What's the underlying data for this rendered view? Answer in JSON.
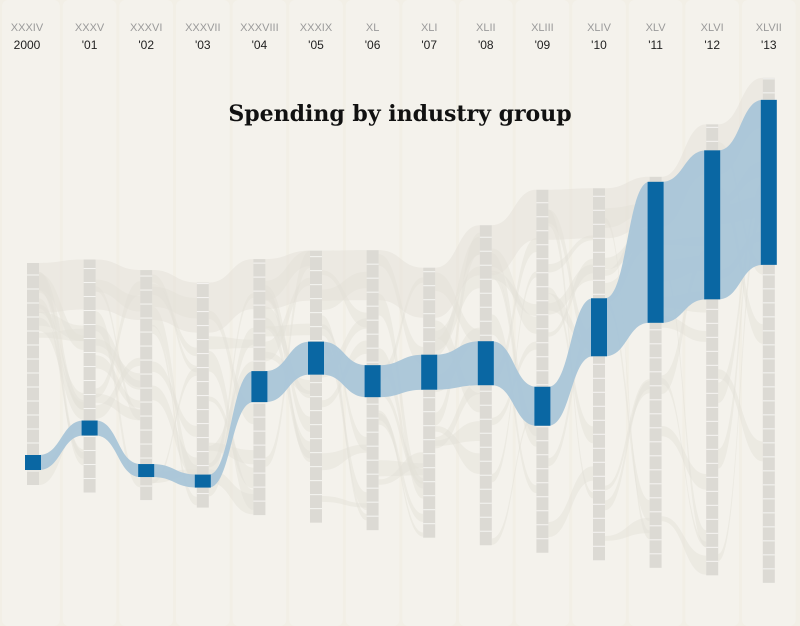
{
  "chart_data": {
    "type": "area",
    "title": "Spending by industry group",
    "columns": [
      {
        "numeral": "XXXIV",
        "year": "2000"
      },
      {
        "numeral": "XXXV",
        "year": "'01"
      },
      {
        "numeral": "XXXVI",
        "year": "'02"
      },
      {
        "numeral": "XXXVII",
        "year": "'03"
      },
      {
        "numeral": "XXXVIII",
        "year": "'04"
      },
      {
        "numeral": "XXXIX",
        "year": "'05"
      },
      {
        "numeral": "XL",
        "year": "'06"
      },
      {
        "numeral": "XLI",
        "year": "'07"
      },
      {
        "numeral": "XLII",
        "year": "'08"
      },
      {
        "numeral": "XLIII",
        "year": "'09"
      },
      {
        "numeral": "XLIV",
        "year": "'10"
      },
      {
        "numeral": "XLV",
        "year": "'11"
      },
      {
        "numeral": "XLVI",
        "year": "'12"
      },
      {
        "numeral": "XLVII",
        "year": "'13"
      }
    ],
    "stack_totals": [
      222,
      233,
      230,
      225,
      256,
      272,
      280,
      270,
      320,
      363,
      372,
      391,
      451,
      505
    ],
    "highlight_series": {
      "lower_bound": [
        15,
        57,
        23,
        20,
        113,
        148,
        133,
        148,
        160,
        127,
        204,
        245,
        276,
        318
      ],
      "upper_bound": [
        30,
        72,
        36,
        33,
        144,
        181,
        165,
        183,
        204,
        166,
        262,
        386,
        425,
        483
      ]
    },
    "colors": {
      "background": "#f2efe6",
      "column_stripe": "#f4f2ec",
      "bar": "#dcdad4",
      "segment_line": "#f6f5f2",
      "flow": "#e3e0d8",
      "highlight_bar": "#0a67a3",
      "highlight_flow": "#a9c5d8"
    }
  }
}
